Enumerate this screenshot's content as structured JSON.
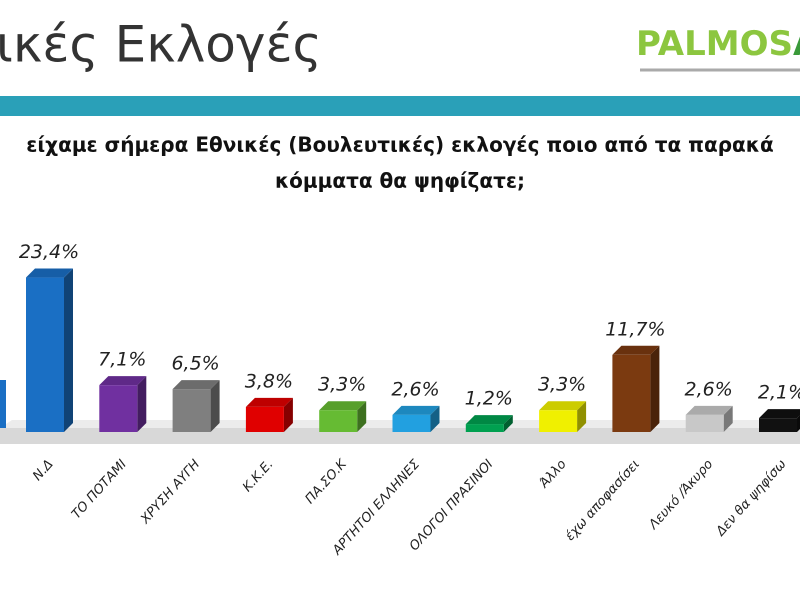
{
  "header": {
    "title": "ικές Εκλογές",
    "logo_main": "PALMOS",
    "logo_end": "AN"
  },
  "chart_data": {
    "type": "bar3d",
    "subtitle": [
      "είχαμε σήμερα Εθνικές (Βουλευτικές) εκλογές ποιο από τα παρακά",
      "κόμματα θα ψηφίζατε;"
    ],
    "categories": [
      "Ν.Δ",
      "ΤΟ ΠΟΤΑΜΙ",
      "ΧΡΥΣΗ ΑΥΓΗ",
      "Κ.Κ.Ε.",
      "ΠΑ.ΣΟ.Κ",
      "ΑΡΤΗΤΟΙ ΕΛΛΗΝΕΣ",
      "ΟΛΟΓΟΙ ΠΡΑΣΙΝΟΙ",
      "Άλλο",
      "έχω αποφασίσει",
      "Λευκό /Άκυρο",
      "Δεν θα ψηφίσω"
    ],
    "values": [
      23.4,
      7.1,
      6.5,
      3.8,
      3.3,
      2.6,
      1.2,
      3.3,
      11.7,
      2.6,
      2.1
    ],
    "value_labels": [
      "23,4%",
      "7,1%",
      "6,5%",
      "3,8%",
      "3,3%",
      "2,6%",
      "1,2%",
      "3,3%",
      "11,7%",
      "2,6%",
      "2,1%"
    ],
    "colors": [
      "#1a6fc4",
      "#7030a0",
      "#7f7f7f",
      "#e00000",
      "#66bb33",
      "#22a0e0",
      "#00a050",
      "#f0f000",
      "#7b3a10",
      "#c8c8c8",
      "#111111"
    ]
  }
}
